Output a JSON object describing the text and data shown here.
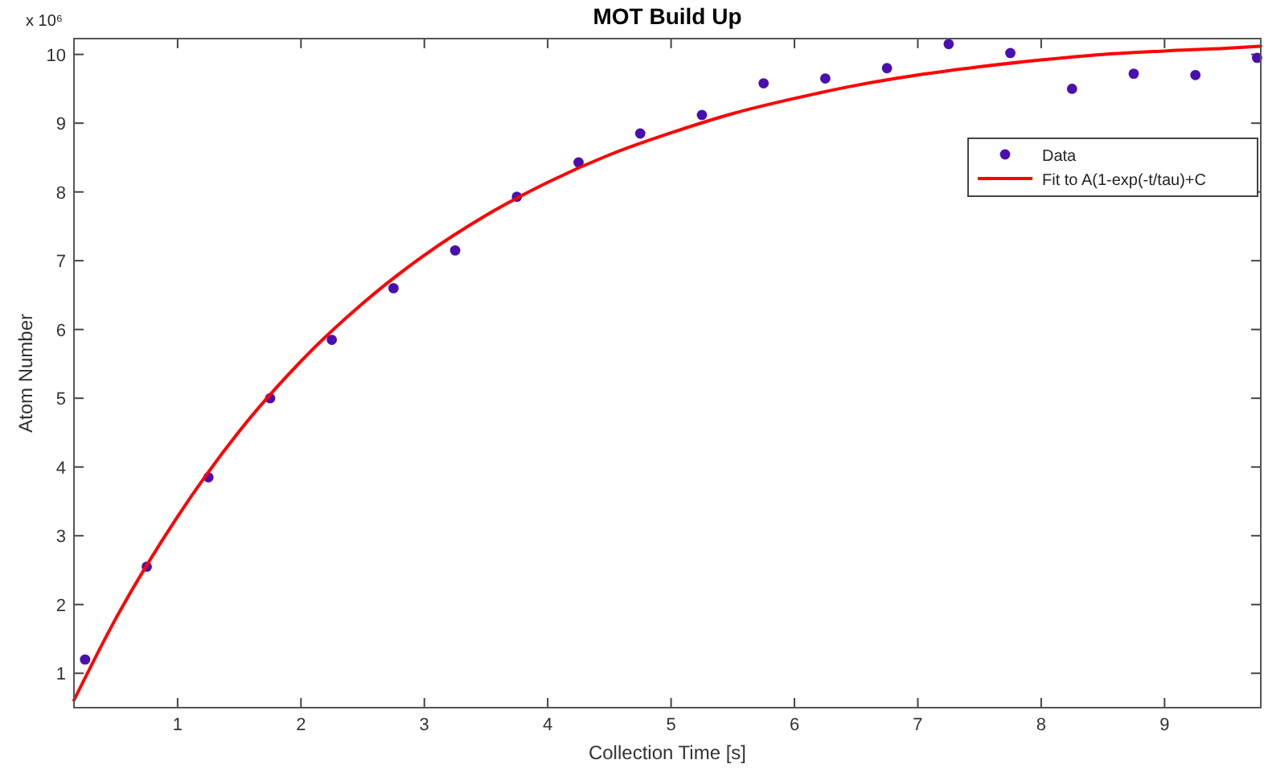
{
  "chart_data": {
    "type": "scatter",
    "title": "MOT Build Up",
    "xlabel": "Collection Time [s]",
    "ylabel": "Atom Number",
    "annotations": [
      "x 10⁶"
    ],
    "xlim": [
      0.16,
      9.78
    ],
    "ylim": [
      0.5,
      10.23
    ],
    "xticks": [
      1,
      2,
      3,
      4,
      5,
      6,
      7,
      8,
      9
    ],
    "yticks": [
      1,
      2,
      3,
      4,
      5,
      6,
      7,
      8,
      9,
      10
    ],
    "grid": false,
    "legend": "top right",
    "series": [
      {
        "name": "Data",
        "marker": "circle",
        "color": "#4a0fb0",
        "x": [
          0.25,
          0.75,
          1.25,
          1.75,
          2.25,
          2.75,
          3.25,
          3.75,
          4.25,
          4.75,
          5.25,
          5.75,
          6.25,
          6.75,
          7.25,
          7.75,
          8.25,
          8.75,
          9.25,
          9.75
        ],
        "values": [
          1.2,
          2.55,
          3.85,
          5.0,
          5.85,
          6.6,
          7.15,
          7.93,
          8.43,
          8.85,
          9.12,
          9.58,
          9.65,
          9.8,
          10.15,
          10.02,
          9.5,
          9.72,
          9.7,
          9.95
        ]
      },
      {
        "name": "Fit to A(1-exp(-t/tau)+C",
        "type": "line",
        "marker": "none",
        "line_style": "solid",
        "color": "#ff0000",
        "x": [
          0.16,
          0.5,
          1,
          1.5,
          2,
          2.5,
          3,
          3.5,
          4,
          4.5,
          5,
          5.5,
          6,
          6.5,
          7,
          7.5,
          8,
          8.5,
          9,
          9.5,
          9.78
        ],
        "values": [
          0.61,
          1.8,
          3.28,
          4.52,
          5.54,
          6.38,
          7.08,
          7.66,
          8.14,
          8.54,
          8.86,
          9.14,
          9.36,
          9.55,
          9.7,
          9.82,
          9.92,
          10.0,
          10.05,
          10.09,
          10.12
        ]
      }
    ]
  }
}
